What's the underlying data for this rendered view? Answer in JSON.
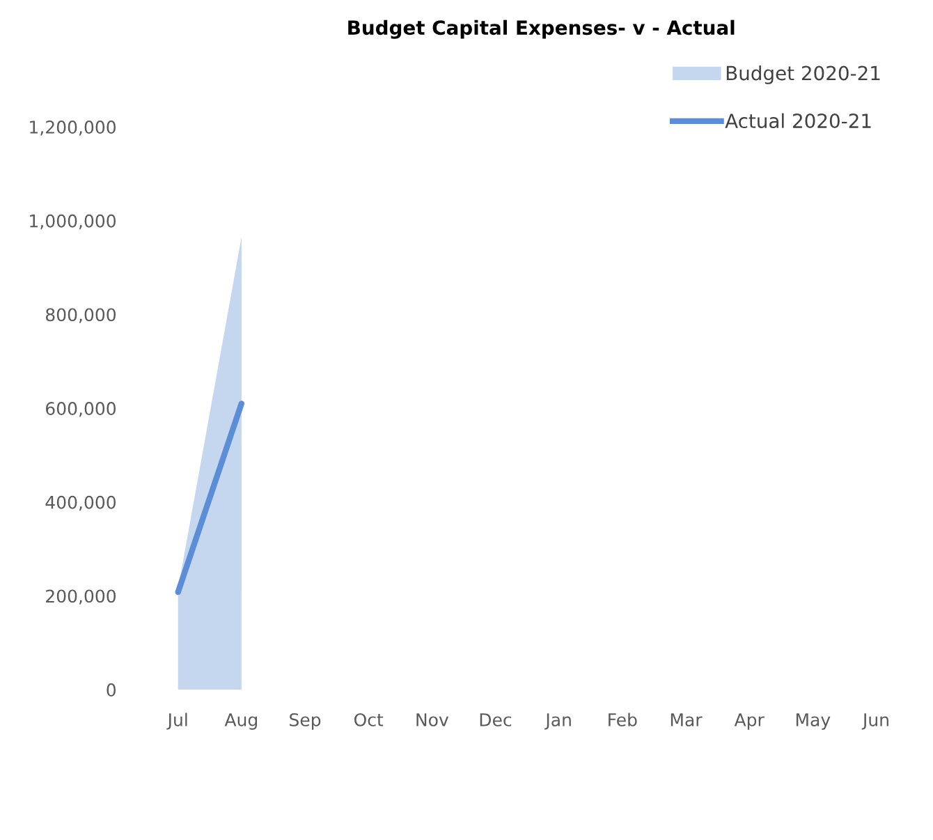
{
  "chart_data": {
    "type": "area",
    "title": "Budget Capital Expenses- v - Actual",
    "categories": [
      "Jul",
      "Aug",
      "Sep",
      "Oct",
      "Nov",
      "Dec",
      "Jan",
      "Feb",
      "Mar",
      "Apr",
      "May",
      "Jun"
    ],
    "series": [
      {
        "name": "Budget 2020-21",
        "color": "#c5d7ef",
        "values": [
          215000,
          965000,
          null,
          null,
          null,
          null,
          null,
          null,
          null,
          null,
          null,
          null
        ]
      },
      {
        "name": "Actual 2020-21",
        "type": "line",
        "color": "#5b8ed6",
        "values": [
          208000,
          610000,
          null,
          null,
          null,
          null,
          null,
          null,
          null,
          null,
          null,
          null
        ]
      }
    ],
    "ylim": [
      0,
      1200000
    ],
    "yticks": [
      {
        "value": 0,
        "label": "0"
      },
      {
        "value": 200000,
        "label": "200,000"
      },
      {
        "value": 400000,
        "label": "400,000"
      },
      {
        "value": 600000,
        "label": "600,000"
      },
      {
        "value": 800000,
        "label": "800,000"
      },
      {
        "value": 1000000,
        "label": "1,000,000"
      },
      {
        "value": 1200000,
        "label": "1,200,000"
      }
    ],
    "legend": "top right",
    "grid": false
  }
}
